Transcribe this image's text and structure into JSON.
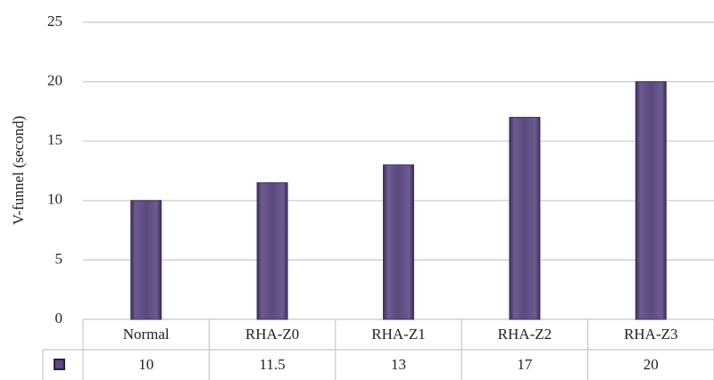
{
  "chart_data": {
    "type": "bar",
    "y_label": "V-funnel (second)",
    "categories": [
      "Normal",
      "RHA-Z0",
      "RHA-Z1",
      "RHA-Z2",
      "RHA-Z3"
    ],
    "values": [
      10,
      11.5,
      13,
      17,
      20
    ],
    "color": "#5b4a7e",
    "ylim": [
      0,
      25
    ],
    "yticks": [
      0,
      5,
      10,
      15,
      20,
      25
    ],
    "grid": true
  }
}
